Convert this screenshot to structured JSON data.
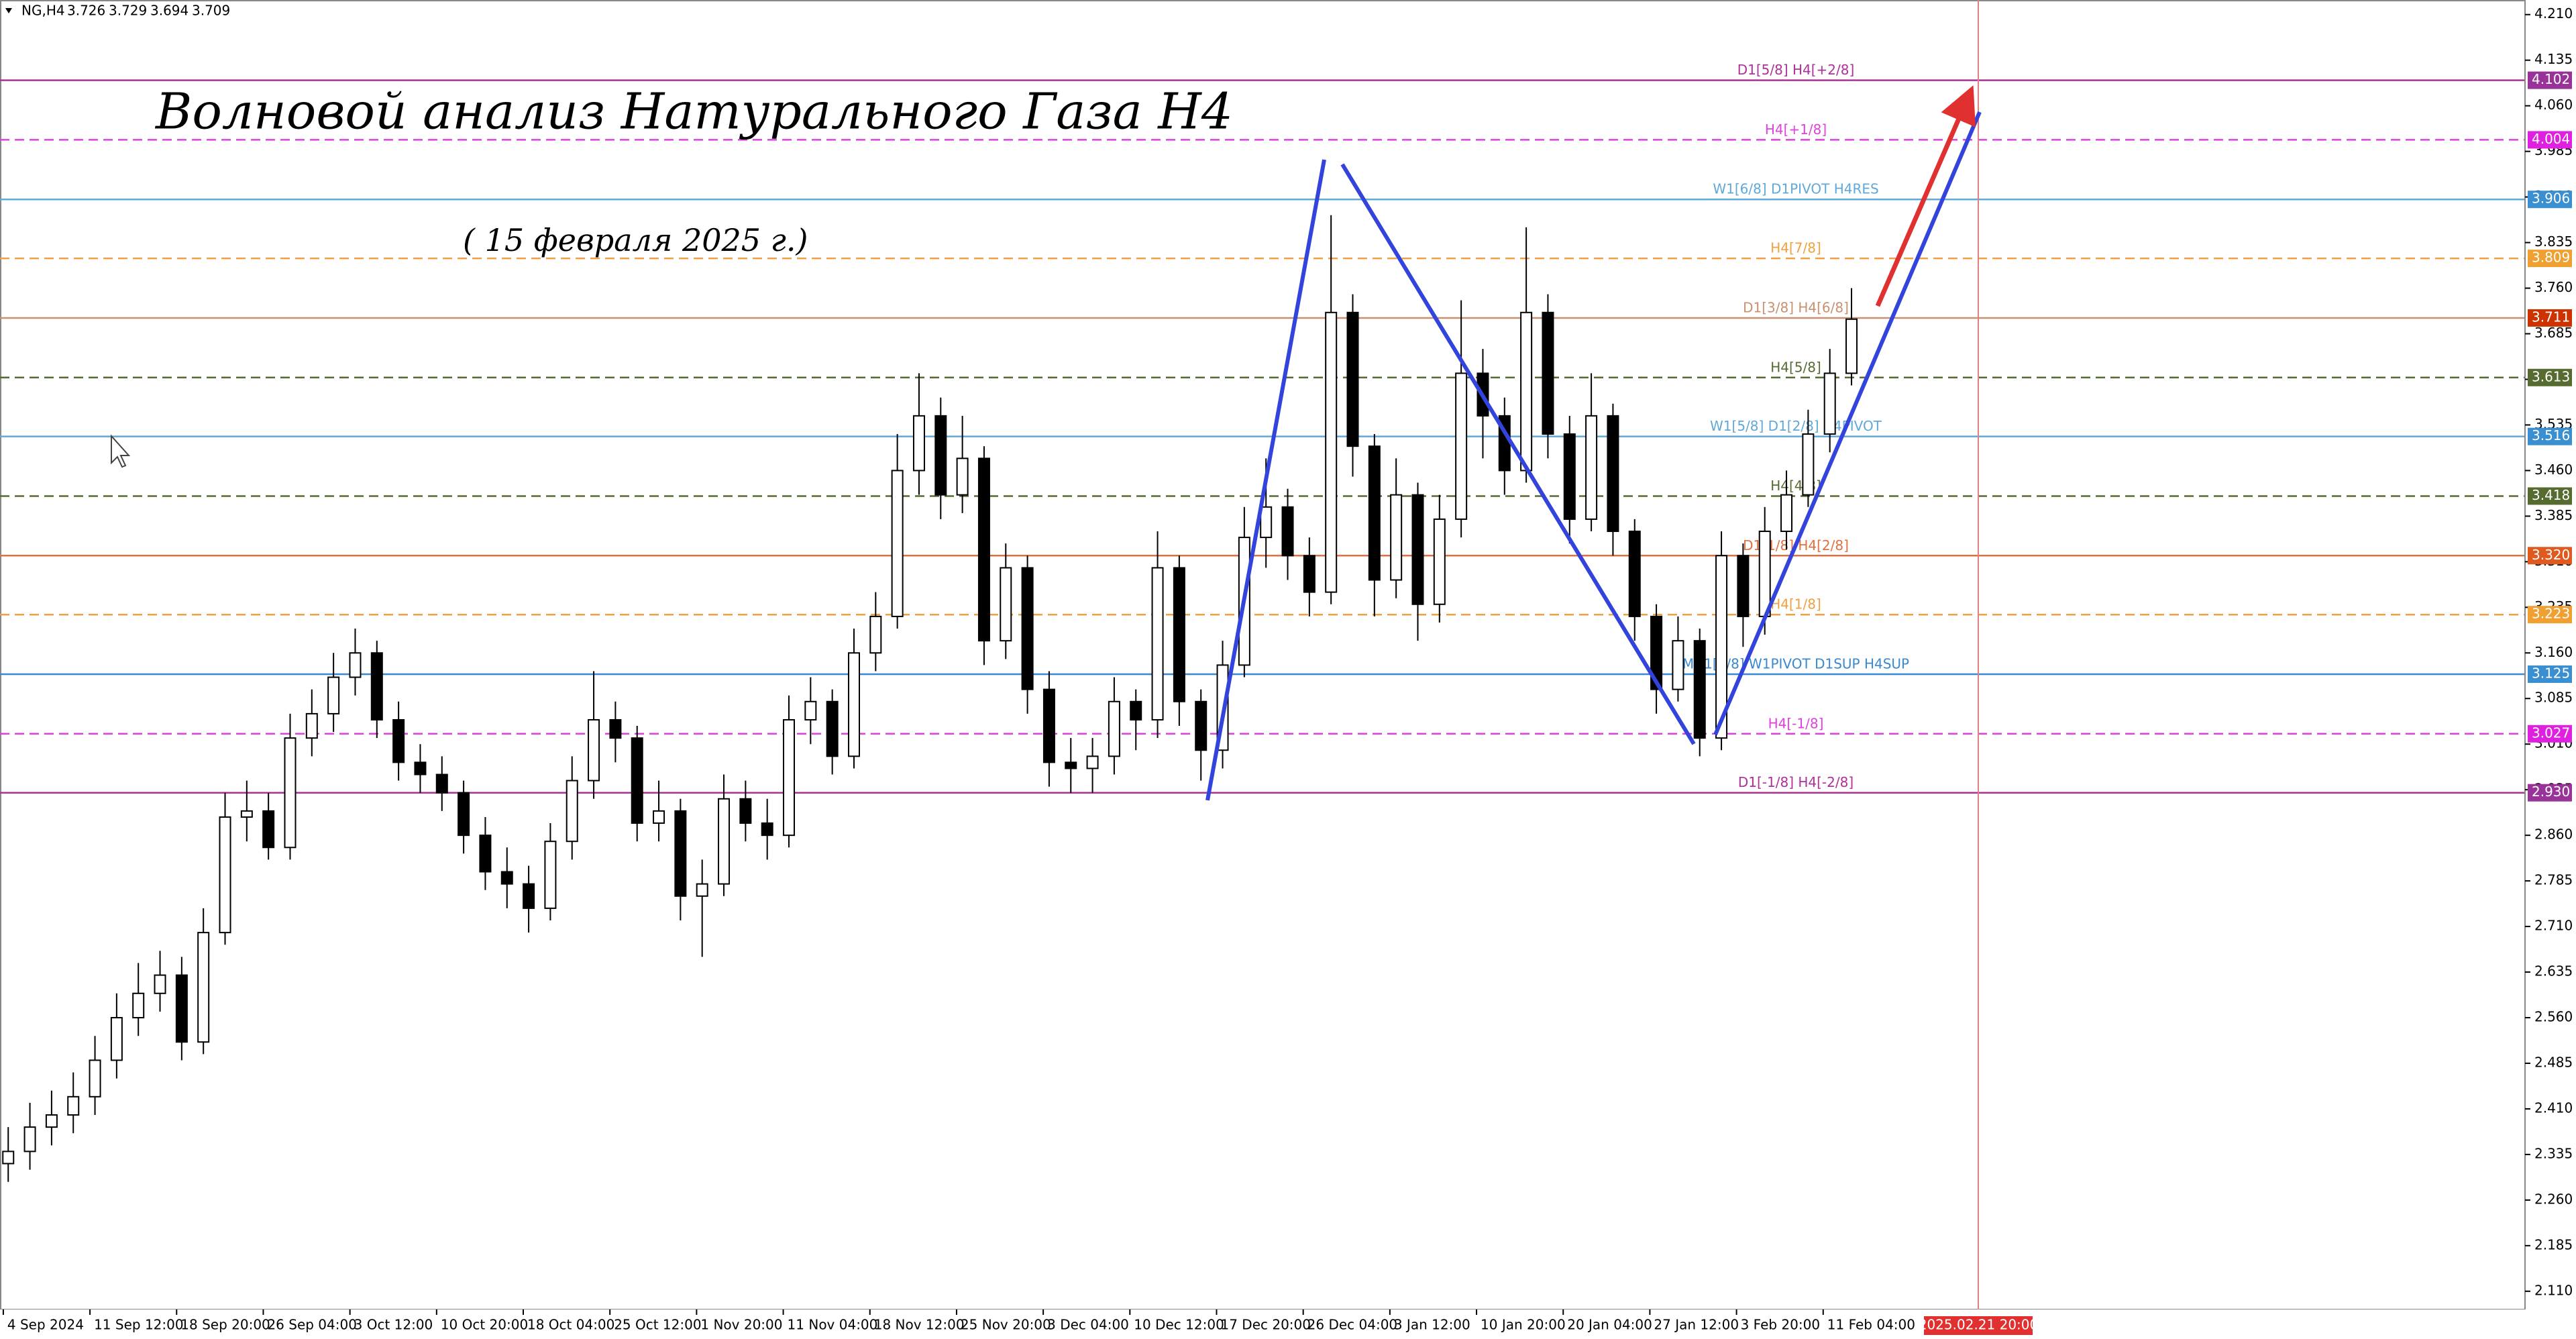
{
  "chart_data": {
    "type": "candlestick",
    "symbol": "NG,H4",
    "last_bar": [
      3.726,
      3.729,
      3.694,
      3.709
    ],
    "title": "Волновой анализ Натурального Газа H4",
    "subtitle": "( 15 февраля 2025 г.)",
    "x_tick_labels": [
      "4 Sep 2024",
      "11 Sep 12:00",
      "18 Sep 20:00",
      "26 Sep 04:00",
      "3 Oct 12:00",
      "10 Oct 20:00",
      "18 Oct 04:00",
      "25 Oct 12:00",
      "1 Nov 20:00",
      "11 Nov 04:00",
      "18 Nov 12:00",
      "25 Nov 20:00",
      "3 Dec 04:00",
      "10 Dec 12:00",
      "17 Dec 20:00",
      "26 Dec 04:00",
      "3 Jan 12:00",
      "10 Jan 20:00",
      "20 Jan 04:00",
      "27 Jan 12:00",
      "3 Feb 20:00",
      "11 Feb 04:00"
    ],
    "x_cursor_label": "2025.02.21 20:00",
    "ylim": [
      2.08,
      4.234
    ],
    "yticks": [
      {
        "value": 4.21,
        "label": "4.210"
      },
      4.135,
      {
        "value": 4.06,
        "label": "4.060"
      },
      3.985,
      {
        "value": 3.91,
        "label": "3.910"
      },
      3.835,
      {
        "value": 3.76,
        "label": "3.760"
      },
      3.685,
      {
        "value": 3.61,
        "label": "3.610"
      },
      3.535,
      {
        "value": 3.46,
        "label": "3.460"
      },
      3.385,
      {
        "value": 3.31,
        "label": "3.310"
      },
      3.235,
      {
        "value": 3.16,
        "label": "3.160"
      },
      3.085,
      {
        "value": 3.01,
        "label": "3.010"
      },
      2.935,
      {
        "value": 2.86,
        "label": "2.860"
      },
      2.785,
      {
        "value": 2.71,
        "label": "2.710"
      },
      2.635,
      {
        "value": 2.56,
        "label": "2.560"
      },
      2.485,
      {
        "value": 2.41,
        "label": "2.410"
      },
      2.335,
      {
        "value": 2.26,
        "label": "2.260"
      },
      2.185,
      {
        "value": 2.11,
        "label": "2.110"
      }
    ],
    "open": [
      2.32,
      2.34,
      2.38,
      2.4,
      2.43,
      2.49,
      2.56,
      2.6,
      2.63,
      2.52,
      2.7,
      2.89,
      2.9,
      2.84,
      3.02,
      3.06,
      3.12,
      3.16,
      3.05,
      2.98,
      2.96,
      2.93,
      2.86,
      2.8,
      2.78,
      2.74,
      2.85,
      2.95,
      3.05,
      3.02,
      2.88,
      2.9,
      2.76,
      2.78,
      2.92,
      2.88,
      2.86,
      3.05,
      3.08,
      2.99,
      3.16,
      3.22,
      3.46,
      3.55,
      3.42,
      3.48,
      3.18,
      3.3,
      3.1,
      2.98,
      2.97,
      2.99,
      3.08,
      3.05,
      3.3,
      3.08,
      3.0,
      3.14,
      3.35,
      3.4,
      3.32,
      3.26,
      3.72,
      3.5,
      3.28,
      3.42,
      3.24,
      3.38,
      3.62,
      3.55,
      3.46,
      3.72,
      3.52,
      3.38,
      3.55,
      3.36,
      3.22,
      3.1,
      3.18,
      3.02,
      3.32,
      3.22,
      3.36,
      3.42,
      3.52,
      3.62
    ],
    "high": [
      2.38,
      2.42,
      2.44,
      2.47,
      2.53,
      2.6,
      2.65,
      2.67,
      2.66,
      2.74,
      2.93,
      2.95,
      2.93,
      3.06,
      3.1,
      3.16,
      3.2,
      3.18,
      3.08,
      3.01,
      2.99,
      2.95,
      2.89,
      2.84,
      2.81,
      2.88,
      2.99,
      3.13,
      3.08,
      3.04,
      2.95,
      2.92,
      2.82,
      2.96,
      2.95,
      2.92,
      3.09,
      3.12,
      3.1,
      3.2,
      3.26,
      3.52,
      3.62,
      3.58,
      3.55,
      3.5,
      3.34,
      3.32,
      3.13,
      3.02,
      3.02,
      3.12,
      3.1,
      3.36,
      3.32,
      3.1,
      3.18,
      3.4,
      3.48,
      3.43,
      3.35,
      3.88,
      3.75,
      3.52,
      3.48,
      3.44,
      3.42,
      3.74,
      3.66,
      3.58,
      3.86,
      3.75,
      3.55,
      3.62,
      3.57,
      3.38,
      3.24,
      3.22,
      3.2,
      3.36,
      3.34,
      3.4,
      3.46,
      3.56,
      3.66,
      3.76
    ],
    "low": [
      2.29,
      2.31,
      2.35,
      2.37,
      2.4,
      2.46,
      2.53,
      2.57,
      2.49,
      2.5,
      2.68,
      2.85,
      2.82,
      2.82,
      2.99,
      3.03,
      3.09,
      3.02,
      2.95,
      2.93,
      2.9,
      2.83,
      2.77,
      2.74,
      2.7,
      2.72,
      2.82,
      2.92,
      2.98,
      2.85,
      2.85,
      2.72,
      2.66,
      2.76,
      2.85,
      2.82,
      2.84,
      3.01,
      2.96,
      2.97,
      3.13,
      3.2,
      3.42,
      3.38,
      3.39,
      3.14,
      3.15,
      3.06,
      2.94,
      2.93,
      2.93,
      2.96,
      3.0,
      3.02,
      3.04,
      2.95,
      2.97,
      3.12,
      3.3,
      3.28,
      3.22,
      3.24,
      3.45,
      3.22,
      3.25,
      3.18,
      3.21,
      3.35,
      3.48,
      3.42,
      3.44,
      3.48,
      3.34,
      3.36,
      3.32,
      3.18,
      3.06,
      3.08,
      2.99,
      3.0,
      3.17,
      3.19,
      3.33,
      3.4,
      3.49,
      3.6
    ],
    "close": [
      2.34,
      2.38,
      2.4,
      2.43,
      2.49,
      2.56,
      2.6,
      2.63,
      2.52,
      2.7,
      2.89,
      2.9,
      2.84,
      3.02,
      3.06,
      3.12,
      3.16,
      3.05,
      2.98,
      2.96,
      2.93,
      2.86,
      2.8,
      2.78,
      2.74,
      2.85,
      2.95,
      3.05,
      3.02,
      2.88,
      2.9,
      2.76,
      2.78,
      2.92,
      2.88,
      2.86,
      3.05,
      3.08,
      2.99,
      3.16,
      3.22,
      3.46,
      3.55,
      3.42,
      3.48,
      3.18,
      3.3,
      3.1,
      2.98,
      2.97,
      2.99,
      3.08,
      3.05,
      3.3,
      3.08,
      3.0,
      3.14,
      3.35,
      3.4,
      3.32,
      3.26,
      3.72,
      3.5,
      3.28,
      3.42,
      3.24,
      3.38,
      3.62,
      3.55,
      3.46,
      3.72,
      3.52,
      3.38,
      3.55,
      3.36,
      3.22,
      3.1,
      3.18,
      3.02,
      3.32,
      3.22,
      3.36,
      3.42,
      3.52,
      3.62,
      3.709
    ],
    "levels": [
      {
        "value": 4.102,
        "name": "D1[5/8] H4[+2/8]",
        "color": "#b0309a",
        "tag_color": "#993399",
        "dashed": false
      },
      {
        "value": 4.004,
        "name": "H4[+1/8]",
        "color": "#e040e0",
        "tag_color": "#e020e0",
        "dashed": true
      },
      {
        "value": 3.906,
        "name": "W1[6/8] D1PIVOT H4RES",
        "color": "#60a8d8",
        "tag_color": "#3a8fd0",
        "dashed": false
      },
      {
        "value": 3.809,
        "name": "H4[7/8]",
        "color": "#f0a040",
        "tag_color": "#f0a030",
        "dashed": true
      },
      {
        "value": 3.711,
        "name": "D1[3/8] H4[6/8]",
        "color": "#c89070",
        "tag_color": "#cc3300",
        "dashed": false
      },
      {
        "value": 3.613,
        "name": "H4[5/8]",
        "color": "#556b2f",
        "tag_color": "#556b2f",
        "dashed": true
      },
      {
        "value": 3.516,
        "name": "W1[5/8] D1[2/8] H4PIVOT",
        "color": "#60a8d8",
        "tag_color": "#3a8fd0",
        "dashed": false
      },
      {
        "value": 3.418,
        "name": "H4[4/8]",
        "color": "#556b2f",
        "tag_color": "#556b2f",
        "dashed": true
      },
      {
        "value": 3.32,
        "value_label": "3.320",
        "name": "D1[1/8] H4[2/8]",
        "color": "#e07040",
        "tag_color": "#e05a20",
        "dashed": false
      },
      {
        "value": 3.223,
        "name": "H4[1/8]",
        "color": "#f0a040",
        "tag_color": "#f0a030",
        "dashed": true
      },
      {
        "value": 3.125,
        "name": "MN1[2/8] W1PIVOT D1SUP H4SUP",
        "color": "#3a88d0",
        "tag_color": "#3a8fd0",
        "dashed": false
      },
      {
        "value": 3.027,
        "name": "H4[-1/8]",
        "color": "#e040e0",
        "tag_color": "#e020e0",
        "dashed": true
      },
      {
        "value": 2.93,
        "value_label": "2.930",
        "name": "D1[-1/8] H4[-2/8]",
        "color": "#b0309a",
        "tag_color": "#993399",
        "dashed": false
      }
    ]
  }
}
